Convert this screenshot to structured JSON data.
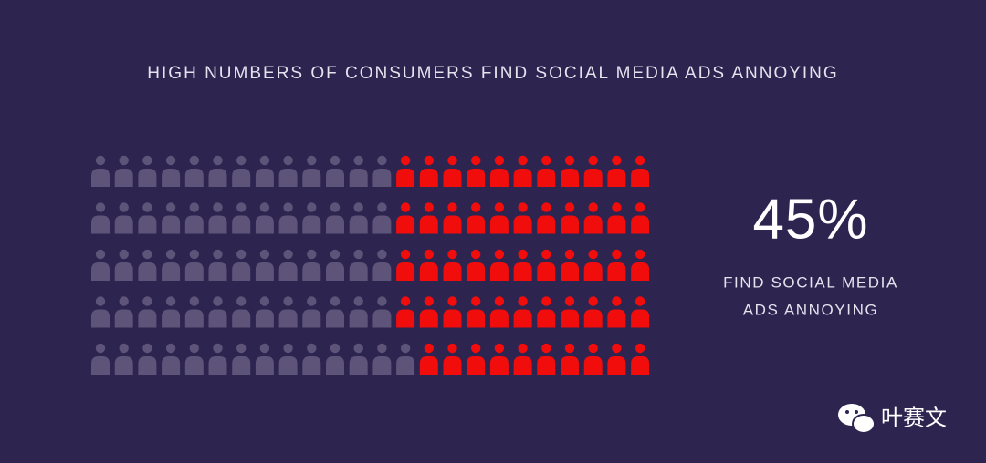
{
  "chart_data": {
    "type": "waffle",
    "title": "HIGH NUMBERS OF CONSUMERS FIND SOCIAL MEDIA ADS ANNOYING",
    "value": 45,
    "value_label": "45%",
    "caption": [
      "FIND SOCIAL MEDIA",
      "ADS ANNOYING"
    ],
    "color": "#f20d0d",
    "rest_color": "#5e5479"
  },
  "watermark": "叶赛文"
}
